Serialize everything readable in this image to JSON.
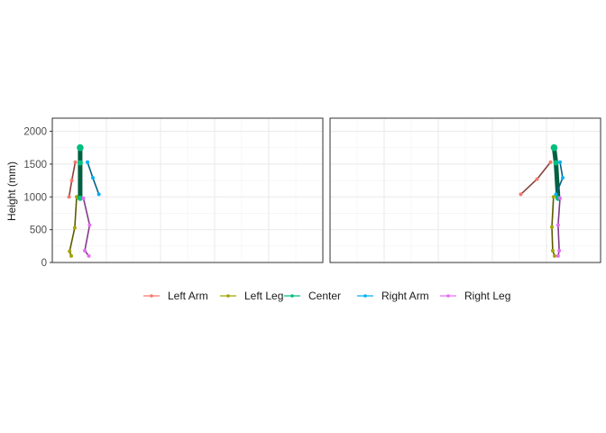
{
  "chart_data": {
    "type": "line",
    "description_note": "",
    "ylabel": "Height (mm)",
    "xlabel": "",
    "ylim": [
      0,
      2200
    ],
    "yticks": [
      0,
      500,
      1000,
      1500,
      2000
    ],
    "grid": true,
    "legend_position": "bottom",
    "series_colors": {
      "Left Arm": "#F8766D",
      "Left Leg": "#A3A500",
      "Center": "#00BF7D",
      "Right Arm": "#00B0F6",
      "Right Leg": "#E76BF3"
    },
    "legend": [
      "Left Arm",
      "Left Leg",
      "Center",
      "Right Arm",
      "Right Leg"
    ],
    "panels": [
      {
        "xlim": [
          0,
          100
        ],
        "series": [
          {
            "name": "Left Arm",
            "x": [
              8.5,
              7.2,
              6.2
            ],
            "y": [
              1530,
              1250,
              1000
            ]
          },
          {
            "name": "Left Leg",
            "x": [
              9.0,
              8.3,
              6.4,
              7.0
            ],
            "y": [
              1000,
              530,
              170,
              100
            ]
          },
          {
            "name": "Center",
            "x": [
              10.3,
              10.3,
              10.3
            ],
            "y": [
              1750,
              1520,
              980
            ]
          },
          {
            "name": "Right Arm",
            "x": [
              13.0,
              15.0,
              17.2
            ],
            "y": [
              1530,
              1290,
              1040
            ]
          },
          {
            "name": "Right Leg",
            "x": [
              11.5,
              13.8,
              12.0,
              13.5
            ],
            "y": [
              980,
              570,
              180,
              100
            ]
          }
        ]
      },
      {
        "xlim": [
          0,
          100
        ],
        "series": [
          {
            "name": "Left Arm",
            "x": [
              81.5,
              76.5,
              70.5
            ],
            "y": [
              1530,
              1270,
              1040
            ]
          },
          {
            "name": "Left Leg",
            "x": [
              82.6,
              82.0,
              82.3,
              83.0
            ],
            "y": [
              1000,
              540,
              180,
              100
            ]
          },
          {
            "name": "Center",
            "x": [
              82.8,
              83.5,
              84.3
            ],
            "y": [
              1750,
              1520,
              980
            ]
          },
          {
            "name": "Right Arm",
            "x": [
              85.0,
              86.0,
              83.5
            ],
            "y": [
              1530,
              1290,
              1040
            ]
          },
          {
            "name": "Right Leg",
            "x": [
              85.0,
              84.3,
              84.7,
              84.3
            ],
            "y": [
              980,
              570,
              180,
              100
            ]
          }
        ]
      }
    ]
  }
}
